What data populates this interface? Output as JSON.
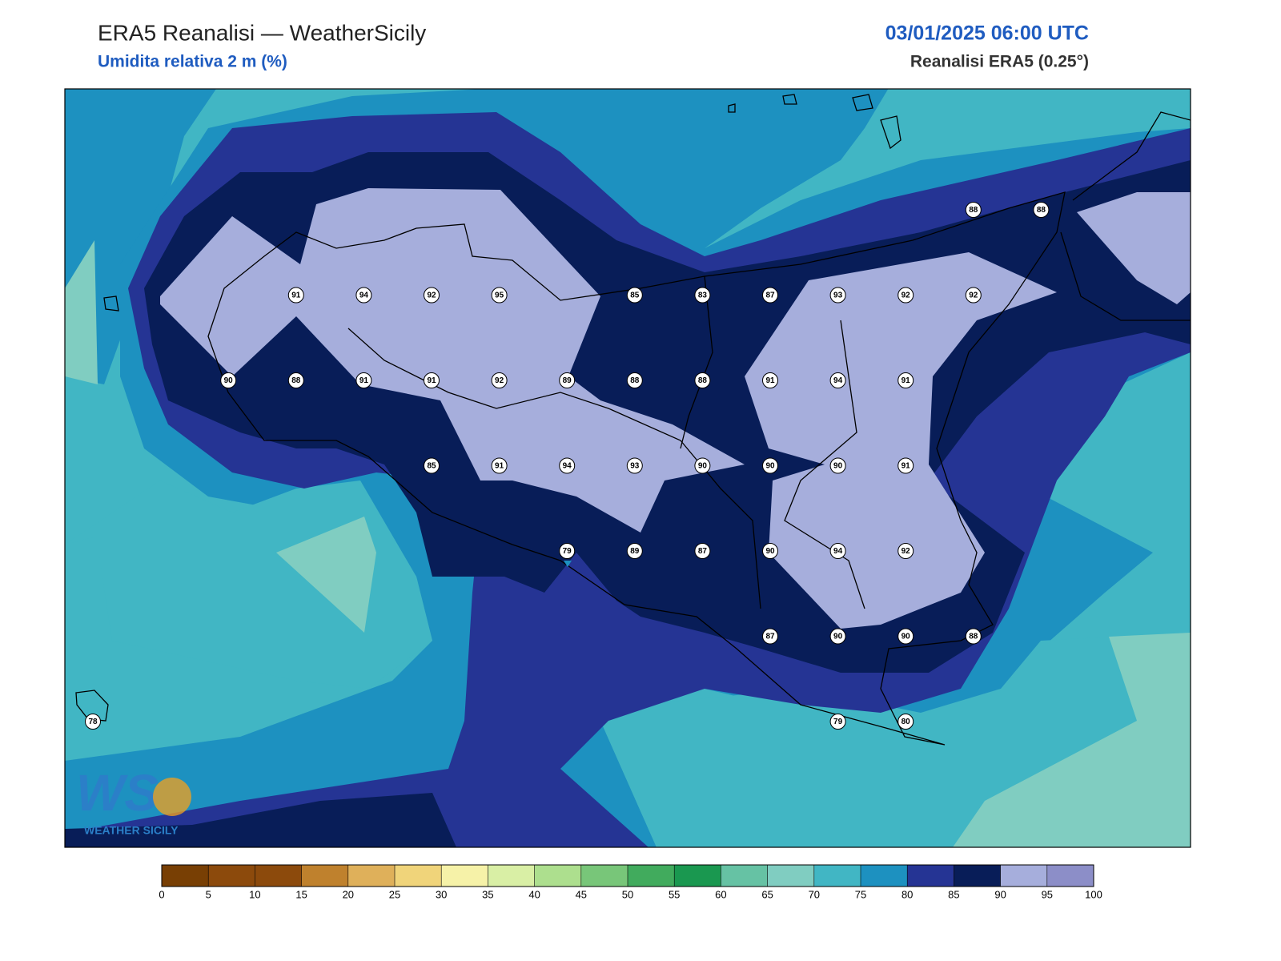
{
  "header": {
    "title": "ERA5 Reanalisi — WeatherSicily",
    "subtitle": "Umidita relativa 2 m (%)",
    "datetime": "03/01/2025 06:00 UTC",
    "source": "Reanalisi ERA5 (0.25°)"
  },
  "stations": {
    "rows": [
      [
        null,
        null,
        null,
        null,
        null,
        null,
        null,
        null,
        null,
        null,
        null,
        null,
        null,
        88,
        88
      ],
      [
        null,
        null,
        null,
        91,
        94,
        92,
        95,
        null,
        85,
        83,
        87,
        93,
        92,
        92,
        null
      ],
      [
        null,
        null,
        90,
        88,
        91,
        91,
        92,
        89,
        88,
        88,
        91,
        94,
        91,
        null,
        null
      ],
      [
        null,
        null,
        null,
        null,
        null,
        85,
        91,
        94,
        93,
        90,
        90,
        90,
        91,
        null,
        null
      ],
      [
        null,
        null,
        null,
        null,
        null,
        null,
        null,
        79,
        89,
        87,
        90,
        94,
        92,
        null,
        null
      ],
      [
        null,
        null,
        null,
        null,
        null,
        null,
        null,
        null,
        null,
        null,
        87,
        90,
        90,
        88,
        null
      ],
      [
        78,
        null,
        null,
        null,
        null,
        null,
        null,
        null,
        null,
        null,
        null,
        79,
        80,
        null,
        null
      ]
    ]
  },
  "colorbar": {
    "ticks": [
      0,
      5,
      10,
      15,
      20,
      25,
      30,
      35,
      40,
      45,
      50,
      55,
      60,
      65,
      70,
      75,
      80,
      85,
      90,
      95,
      100
    ],
    "colors": [
      "#783f04",
      "#8c4a0c",
      "#8c4a0c",
      "#bf812d",
      "#dfb05a",
      "#f0d47a",
      "#f6f2a8",
      "#d9efa5",
      "#addf8e",
      "#78c679",
      "#41ab5d",
      "#1a9850",
      "#66c2a4",
      "#80cdc1",
      "#41b6c4",
      "#1d91c0",
      "#253494",
      "#081d58",
      "#a6aedc",
      "#8c8ec8"
    ]
  },
  "logo": {
    "mark": "WS",
    "name": "WEATHER SICILY"
  }
}
